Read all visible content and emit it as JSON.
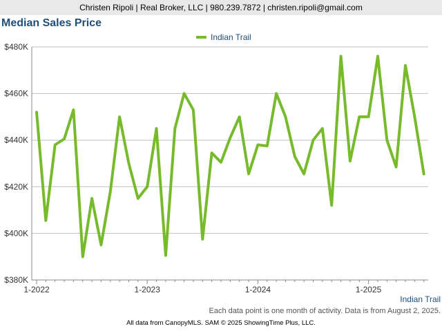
{
  "header": {
    "contact": "Christen Ripoli | Real Broker, LLC | 980.239.7872 | christen.ripoli@gmail.com"
  },
  "colors": {
    "series": "#77bb2c",
    "grid": "#bfbfbf",
    "axis": "#888888",
    "title": "#1f4e79"
  },
  "chart_data": {
    "type": "line",
    "title": "Median Sales Price",
    "xlabel": "",
    "ylabel": "",
    "ylim": [
      380000,
      480000
    ],
    "yticks": [
      {
        "value": 380000,
        "label": "$380K"
      },
      {
        "value": 400000,
        "label": "$400K"
      },
      {
        "value": 420000,
        "label": "$420K"
      },
      {
        "value": 440000,
        "label": "$440K"
      },
      {
        "value": 460000,
        "label": "$460K"
      },
      {
        "value": 480000,
        "label": "$480K"
      }
    ],
    "xticks": [
      {
        "index": 0,
        "label": "1-2022"
      },
      {
        "index": 12,
        "label": "1-2023"
      },
      {
        "index": 24,
        "label": "1-2024"
      },
      {
        "index": 36,
        "label": "1-2025"
      }
    ],
    "legend_position": "top-center",
    "corner_label": "Indian Trail",
    "series": [
      {
        "name": "Indian Trail",
        "start_month": "1-2022",
        "values": [
          452000,
          405500,
          438000,
          440500,
          453000,
          390000,
          415000,
          395000,
          418000,
          450000,
          430000,
          415000,
          420000,
          445000,
          390500,
          445000,
          460000,
          453000,
          397500,
          434500,
          430500,
          441000,
          450000,
          425500,
          438000,
          437500,
          460000,
          450000,
          433000,
          425500,
          440000,
          445000,
          412000,
          476000,
          431000,
          450000,
          450000,
          476000,
          440000,
          428500,
          472000,
          450000,
          425500
        ]
      }
    ]
  },
  "footnote": "Each data point is one month of activity. Data is from August 2, 2025.",
  "footer": "All data from CanopyMLS. SAM © 2025 ShowingTime Plus, LLC."
}
